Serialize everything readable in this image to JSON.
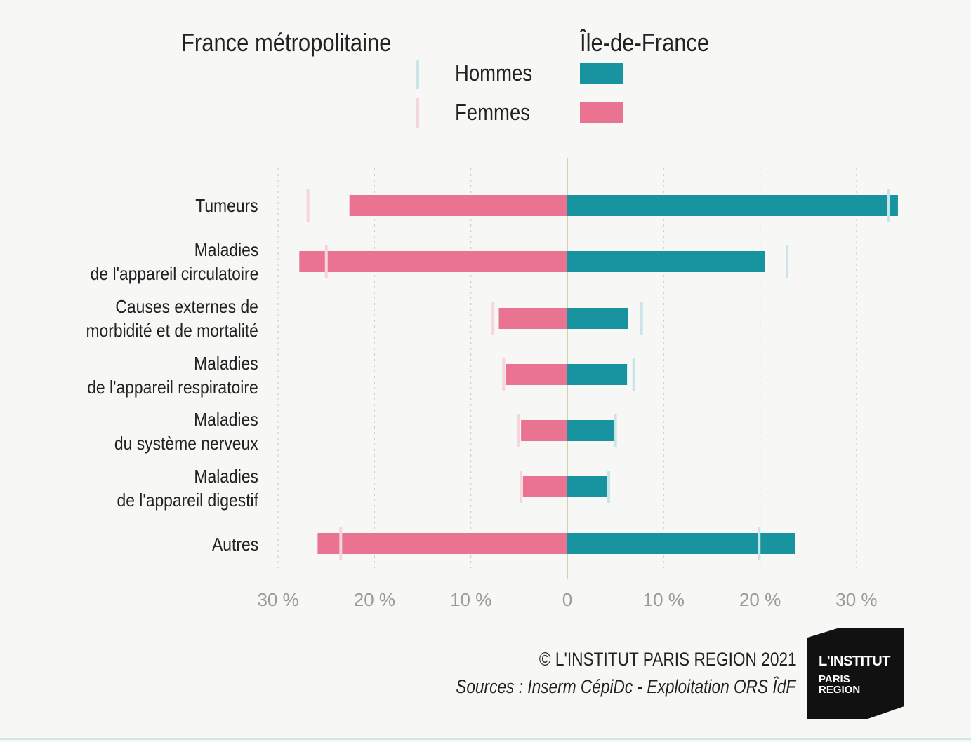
{
  "legend": {
    "left_heading": "France métropolitaine",
    "right_heading": "Île-de-France",
    "hommes_label": "Hommes",
    "femmes_label": "Femmes"
  },
  "colors": {
    "hommes": "#17949f",
    "femmes": "#e97391",
    "hommes_marker": "#c9e5e8",
    "femmes_marker": "#f6d5dd",
    "axis_center": "#d9cdb4"
  },
  "footer": {
    "copyright": "© L'INSTITUT PARIS REGION 2021",
    "sources": "Sources : Inserm CépiDc - Exploitation ORS ÎdF"
  },
  "logo": {
    "line1": "L'INSTITUT",
    "line2": "PARIS",
    "line3": "REGION"
  },
  "chart_data": {
    "type": "bar",
    "orientation": "horizontal-butterfly",
    "categories": [
      "Tumeurs",
      "Maladies\nde l'appareil circulatoire",
      "Causes externes de\nmorbidité et de mortalité",
      "Maladies\nde l'appareil respiratoire",
      "Maladies\ndu système nerveux",
      "Maladies\nde l'appareil digestif",
      "Autres"
    ],
    "series": [
      {
        "name": "Femmes",
        "region": "Île-de-France",
        "side": "left",
        "values": [
          22.6,
          27.8,
          7.1,
          6.4,
          4.8,
          4.6,
          25.9
        ]
      },
      {
        "name": "Hommes",
        "region": "Île-de-France",
        "side": "right",
        "values": [
          34.3,
          20.5,
          6.3,
          6.2,
          4.9,
          4.1,
          23.6
        ]
      },
      {
        "name": "Femmes",
        "region": "France métropolitaine",
        "side": "left",
        "values": [
          26.9,
          25.0,
          7.7,
          6.6,
          5.1,
          4.8,
          23.5
        ]
      },
      {
        "name": "Hommes",
        "region": "France métropolitaine",
        "side": "right",
        "values": [
          33.3,
          22.8,
          7.7,
          6.9,
          5.0,
          4.3,
          19.9
        ]
      }
    ],
    "xticks": [
      "30 %",
      "20 %",
      "10 %",
      "0",
      "10 %",
      "20 %",
      "30 %"
    ],
    "xtick_values": [
      -30,
      -20,
      -10,
      0,
      10,
      20,
      30
    ],
    "xlim": [
      -30,
      35
    ],
    "grid": true
  }
}
